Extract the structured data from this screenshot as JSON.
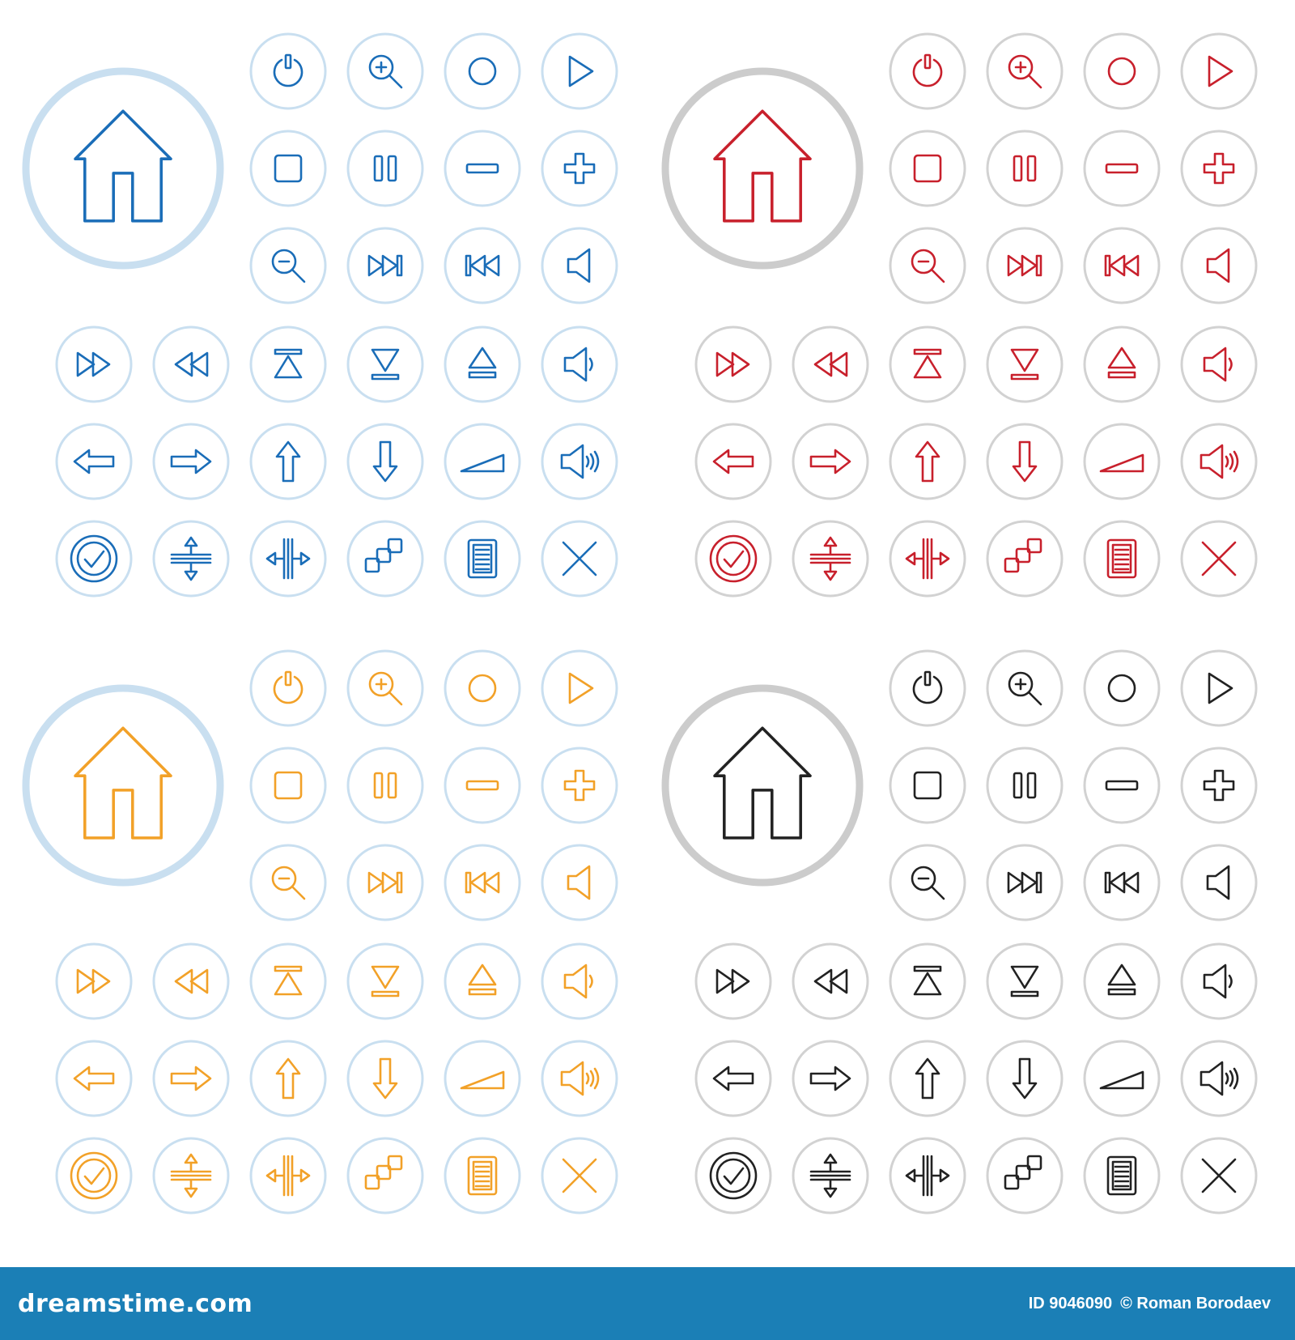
{
  "icon_sets": [
    {
      "name": "blue",
      "stroke": "#1a6db8",
      "ring": "#c9dff0",
      "home_ring": "#c9dff0"
    },
    {
      "name": "red",
      "stroke": "#c8202c",
      "ring": "#d2d2d2",
      "home_ring": "#cccccc"
    },
    {
      "name": "orange",
      "stroke": "#f2a128",
      "ring": "#c9dff0",
      "home_ring": "#c9dff0"
    },
    {
      "name": "black",
      "stroke": "#222222",
      "ring": "#d2d2d2",
      "home_ring": "#cccccc"
    }
  ],
  "icon_rows": [
    [
      "power-icon",
      "zoom-in-icon",
      "record-icon",
      "play-icon"
    ],
    [
      "stop-icon",
      "pause-icon",
      "minus-icon",
      "plus-icon"
    ],
    [
      "zoom-out-icon",
      "skip-forward-icon",
      "skip-back-icon",
      "speaker-icon"
    ],
    [
      "fast-forward-icon",
      "rewind-icon",
      "collapse-up-icon",
      "collapse-down-icon",
      "eject-icon",
      "volume-low-icon"
    ],
    [
      "arrow-left-icon",
      "arrow-right-icon",
      "arrow-up-icon",
      "arrow-down-icon",
      "volume-slope-icon",
      "volume-high-icon"
    ],
    [
      "check-icon",
      "resize-vertical-icon",
      "resize-horizontal-icon",
      "windows-icon",
      "document-icon",
      "close-icon"
    ]
  ],
  "home_icon": "home-icon",
  "footer": {
    "logo_text": "dreamstime.com",
    "image_id": "ID 9046090",
    "copyright": "© Roman Borodaev",
    "background": "#1b7fb6"
  }
}
